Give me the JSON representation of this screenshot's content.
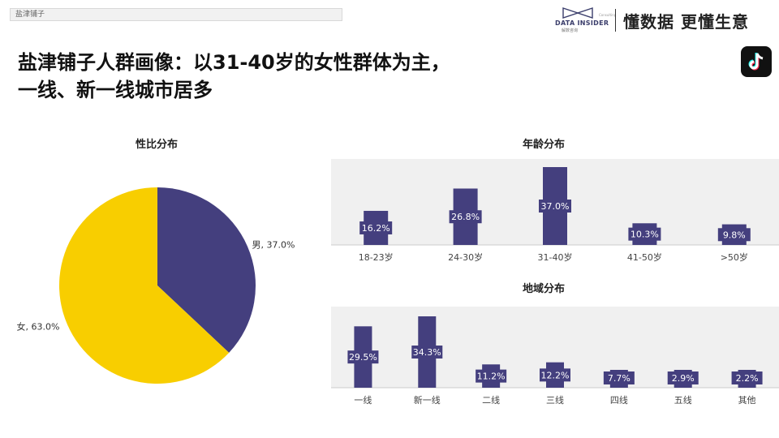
{
  "header": {
    "tag": "盐津铺子",
    "brand_name": "DATA INSIDER",
    "brand_sub": "解数咨询",
    "brand_corner": "Consulting",
    "slogan": "懂数据 更懂生意"
  },
  "title_line1": "盐津铺子人群画像：以31-40岁的女性群体为主，",
  "title_line2": "一线、新一线城市居多",
  "colors": {
    "primary": "#443f7e",
    "accent": "#f8ce00",
    "panel": "#f0f0f0",
    "axis": "#cccccc"
  },
  "chart_data": [
    {
      "type": "pie",
      "title": "性比分布",
      "slices": [
        {
          "label": "男",
          "value": 37.0,
          "display": "男, 37.0%",
          "color": "#443f7e"
        },
        {
          "label": "女",
          "value": 63.0,
          "display": "女, 63.0%",
          "color": "#f8ce00"
        }
      ]
    },
    {
      "type": "bar",
      "title": "年龄分布",
      "categories": [
        "18-23岁",
        "24-30岁",
        "31-40岁",
        "41-50岁",
        ">50岁"
      ],
      "values": [
        16.2,
        26.8,
        37.0,
        10.3,
        9.8
      ],
      "labels": [
        "16.2%",
        "26.8%",
        "37.0%",
        "10.3%",
        "9.8%"
      ],
      "ylim": [
        0,
        37.0
      ],
      "grid": false
    },
    {
      "type": "bar",
      "title": "地域分布",
      "categories": [
        "一线",
        "新一线",
        "二线",
        "三线",
        "四线",
        "五线",
        "其他"
      ],
      "values": [
        29.5,
        34.3,
        11.2,
        12.2,
        7.7,
        2.9,
        2.2
      ],
      "labels": [
        "29.5%",
        "34.3%",
        "11.2%",
        "12.2%",
        "7.7%",
        "2.9%",
        "2.2%"
      ],
      "ylim": [
        0,
        34.3
      ],
      "grid": false
    }
  ]
}
